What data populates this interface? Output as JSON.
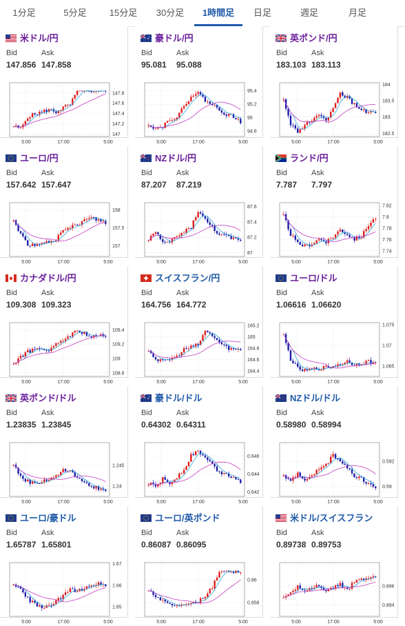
{
  "tabs": [
    "1分足",
    "5分足",
    "15分足",
    "30分足",
    "1時間足",
    "日足",
    "週足",
    "月足"
  ],
  "active_tab": 4,
  "colors": {
    "up": "#e01b1b",
    "down": "#1b1ba8",
    "ma_short": "#2aa7d8",
    "ma_long": "#c23ac0",
    "pair_purple": "#6a1f9a",
    "pair_blue": "#1e5aa8"
  },
  "labels": {
    "bid": "Bid",
    "ask": "Ask"
  },
  "cards": [
    {
      "name": "米ドル/円",
      "flags": [
        "us"
      ],
      "color": "purple",
      "bid": "147.856",
      "ask": "147.858",
      "chart_data": {
        "type": "candlestick",
        "x_ticks": [
          "5:00",
          "17:00",
          "5:00"
        ],
        "y_ticks": [
          "147.8",
          "147.6",
          "147.4",
          "147.2",
          "147"
        ],
        "ylim": [
          146.95,
          148.0
        ]
      }
    },
    {
      "name": "豪ドル/円",
      "flags": [
        "au"
      ],
      "color": "purple",
      "bid": "95.081",
      "ask": "95.088",
      "chart_data": {
        "type": "candlestick",
        "x_ticks": [
          "5:00",
          "17:00",
          "5:00"
        ],
        "y_ticks": [
          "95.4",
          "95.2",
          "95",
          "94.8"
        ],
        "ylim": [
          94.72,
          95.52
        ]
      }
    },
    {
      "name": "英ポンド/円",
      "flags": [
        "gb"
      ],
      "color": "purple",
      "bid": "183.103",
      "ask": "183.113",
      "chart_data": {
        "type": "candlestick",
        "x_ticks": [
          "5:00",
          "17:00",
          "5:00"
        ],
        "y_ticks": [
          "184",
          "183.5",
          "183",
          "182.5"
        ],
        "ylim": [
          182.4,
          184.05
        ]
      }
    },
    {
      "name": "ユーロ/円",
      "flags": [
        "eu"
      ],
      "color": "purple",
      "bid": "157.642",
      "ask": "157.647",
      "chart_data": {
        "type": "candlestick",
        "x_ticks": [
          "5:00",
          "17:00",
          "5:00"
        ],
        "y_ticks": [
          "158",
          "157.5",
          "157"
        ],
        "ylim": [
          156.7,
          158.2
        ]
      }
    },
    {
      "name": "NZドル/円",
      "flags": [
        "nz"
      ],
      "color": "purple",
      "bid": "87.207",
      "ask": "87.219",
      "chart_data": {
        "type": "candlestick",
        "x_ticks": [
          "5:00",
          "17:00",
          "5:00"
        ],
        "y_ticks": [
          "87.6",
          "87.4",
          "87.2",
          "87"
        ],
        "ylim": [
          86.95,
          87.65
        ]
      }
    },
    {
      "name": "ランド/円",
      "flags": [
        "za"
      ],
      "color": "purple",
      "bid": "7.787",
      "ask": "7.797",
      "chart_data": {
        "type": "candlestick",
        "x_ticks": [
          "5:00",
          "17:00",
          "5:00"
        ],
        "y_ticks": [
          "7.82",
          "7.8",
          "7.78",
          "7.76",
          "7.74"
        ],
        "ylim": [
          7.73,
          7.825
        ]
      }
    },
    {
      "name": "カナダドル/円",
      "flags": [
        "ca"
      ],
      "color": "purple",
      "bid": "109.308",
      "ask": "109.323",
      "chart_data": {
        "type": "candlestick",
        "x_ticks": [
          "5:00",
          "17:00",
          "5:00"
        ],
        "y_ticks": [
          "109.4",
          "109.2",
          "109",
          "108.8"
        ],
        "ylim": [
          108.75,
          109.5
        ]
      }
    },
    {
      "name": "スイスフラン/円",
      "flags": [
        "ch"
      ],
      "color": "blue",
      "bid": "164.756",
      "ask": "164.772",
      "chart_data": {
        "type": "candlestick",
        "x_ticks": [
          "5:00",
          "17:00",
          "5:00"
        ],
        "y_ticks": [
          "165.2",
          "165",
          "164.8",
          "164.6",
          "164.4"
        ],
        "ylim": [
          164.3,
          165.25
        ]
      }
    },
    {
      "name": "ユーロ/ドル",
      "flags": [
        "eu",
        "us"
      ],
      "color": "purple",
      "bid": "1.06616",
      "ask": "1.06620",
      "chart_data": {
        "type": "candlestick",
        "x_ticks": [
          "5:00",
          "17:00",
          "5:00"
        ],
        "y_ticks": [
          "1.075",
          "1.07",
          "1.065"
        ],
        "ylim": [
          1.0625,
          1.0755
        ]
      }
    },
    {
      "name": "英ポンド/ドル",
      "flags": [
        "gb",
        "us"
      ],
      "color": "purple",
      "bid": "1.23835",
      "ask": "1.23845",
      "chart_data": {
        "type": "candlestick",
        "x_ticks": [
          "5:00",
          "17:00",
          "5:00"
        ],
        "y_ticks": [
          "1.245",
          "1.24"
        ],
        "ylim": [
          1.2375,
          1.2505
        ]
      }
    },
    {
      "name": "豪ドル/ドル",
      "flags": [
        "au",
        "us"
      ],
      "color": "blue",
      "bid": "0.64302",
      "ask": "0.64311",
      "chart_data": {
        "type": "candlestick",
        "x_ticks": [
          "5:00",
          "17:00",
          "5:00"
        ],
        "y_ticks": [
          "0.646",
          "0.644",
          "0.642"
        ],
        "ylim": [
          0.6415,
          0.6475
        ]
      }
    },
    {
      "name": "NZドル/ドル",
      "flags": [
        "nz",
        "us"
      ],
      "color": "blue",
      "bid": "0.58980",
      "ask": "0.58994",
      "chart_data": {
        "type": "candlestick",
        "x_ticks": [
          "5:00",
          "17:00",
          "5:00"
        ],
        "y_ticks": [
          "0.592",
          "0.59"
        ],
        "ylim": [
          0.5892,
          0.5935
        ]
      }
    },
    {
      "name": "ユーロ/豪ドル",
      "flags": [
        "eu",
        "au"
      ],
      "color": "blue",
      "bid": "1.65787",
      "ask": "1.65801",
      "chart_data": {
        "type": "candlestick",
        "x_ticks": [
          "5:00",
          "17:00",
          "5:00"
        ],
        "y_ticks": [
          "1.67",
          "1.66",
          "1.65"
        ],
        "ylim": [
          1.6455,
          1.6705
        ]
      }
    },
    {
      "name": "ユーロ/英ポンド",
      "flags": [
        "eu",
        "gb"
      ],
      "color": "blue",
      "bid": "0.86087",
      "ask": "0.86095",
      "chart_data": {
        "type": "candlestick",
        "x_ticks": [
          "5:00",
          "17:00",
          "5:00"
        ],
        "y_ticks": [
          "0.86",
          "0.858"
        ],
        "ylim": [
          0.8568,
          0.8615
        ]
      }
    },
    {
      "name": "米ドル/スイスフラン",
      "flags": [
        "us",
        "ch"
      ],
      "color": "blue",
      "bid": "0.89738",
      "ask": "0.89753",
      "chart_data": {
        "type": "candlestick",
        "x_ticks": [
          "5:00",
          "17:00",
          "5:00"
        ],
        "y_ticks": [
          "0.896",
          "0.894"
        ],
        "ylim": [
          0.8928,
          0.8985
        ]
      }
    }
  ]
}
